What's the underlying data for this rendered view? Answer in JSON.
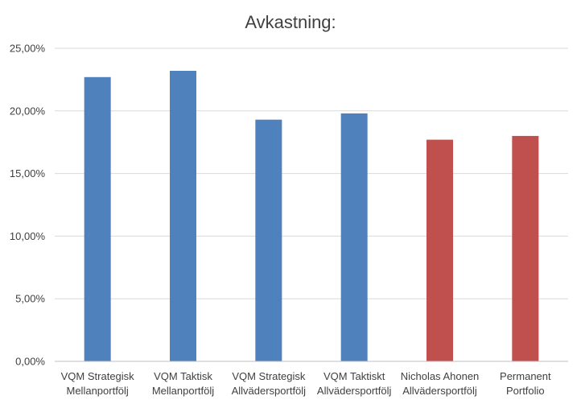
{
  "chart_data": {
    "type": "bar",
    "title": "Avkastning:",
    "xlabel": "",
    "ylabel": "",
    "ylim": [
      0,
      25
    ],
    "yticks": [
      0,
      5,
      10,
      15,
      20,
      25
    ],
    "ytick_labels": [
      "0,00%",
      "5,00%",
      "10,00%",
      "15,00%",
      "20,00%",
      "25,00%"
    ],
    "grid": true,
    "legend": "none",
    "categories": [
      [
        "VQM Strategisk",
        "Mellanportfölj"
      ],
      [
        "VQM Taktisk",
        "Mellanportfölj"
      ],
      [
        "VQM Strategisk",
        "Allvädersportfölj"
      ],
      [
        "VQM Taktiskt",
        "Allvädersportfölj"
      ],
      [
        "Nicholas Ahonen",
        "Allvädersportfölj"
      ],
      [
        "Permanent",
        "Portfolio"
      ]
    ],
    "values": [
      22.7,
      23.2,
      19.3,
      19.8,
      17.7,
      18.0
    ],
    "bar_colors": [
      "#4f81bd",
      "#4f81bd",
      "#4f81bd",
      "#4f81bd",
      "#c0504d",
      "#c0504d"
    ]
  },
  "colors": {
    "gridline": "#d9d9d9",
    "axis": "#bfbfbf",
    "text": "#404040"
  }
}
